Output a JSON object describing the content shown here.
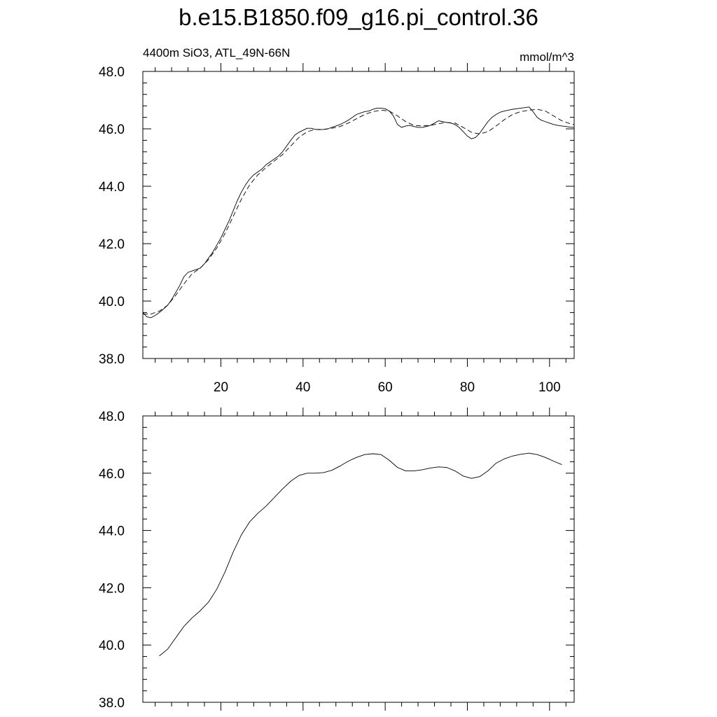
{
  "title": "b.e15.B1850.f09_g16.pi_control.36",
  "chart_data": [
    {
      "type": "line",
      "left_label": "4400m SiO3, ATL_49N-66N",
      "right_label": "mmol/m^3",
      "xlim": [
        1,
        106
      ],
      "ylim": [
        38.0,
        48.0
      ],
      "y_ticks": [
        "38.0",
        "40.0",
        "42.0",
        "44.0",
        "46.0",
        "48.0"
      ],
      "x_ticks": [
        "20",
        "40",
        "60",
        "80",
        "100"
      ],
      "series": [
        {
          "style": "solid",
          "x": [
            1,
            2,
            3,
            4,
            5,
            6,
            7,
            8,
            9,
            10,
            11,
            12,
            13,
            14,
            15,
            16,
            17,
            18,
            19,
            20,
            21,
            22,
            23,
            24,
            25,
            26,
            27,
            28,
            29,
            30,
            31,
            32,
            33,
            34,
            35,
            36,
            37,
            38,
            39,
            40,
            41,
            42,
            43,
            44,
            45,
            46,
            47,
            48,
            49,
            50,
            51,
            52,
            53,
            54,
            55,
            56,
            57,
            58,
            59,
            60,
            61,
            62,
            63,
            64,
            65,
            66,
            67,
            68,
            69,
            70,
            71,
            72,
            73,
            74,
            75,
            76,
            77,
            78,
            79,
            80,
            81,
            82,
            83,
            84,
            85,
            86,
            87,
            88,
            89,
            90,
            91,
            92,
            93,
            94,
            95,
            96,
            97,
            98,
            99,
            100,
            101,
            102,
            103,
            104,
            105,
            106
          ],
          "values": [
            39.6,
            39.45,
            39.42,
            39.5,
            39.6,
            39.72,
            39.85,
            40.05,
            40.3,
            40.55,
            40.85,
            41.0,
            41.05,
            41.1,
            41.15,
            41.3,
            41.5,
            41.7,
            41.95,
            42.2,
            42.5,
            42.8,
            43.15,
            43.5,
            43.8,
            44.05,
            44.25,
            44.4,
            44.5,
            44.6,
            44.75,
            44.85,
            44.95,
            45.05,
            45.2,
            45.4,
            45.6,
            45.78,
            45.88,
            45.95,
            46.02,
            46.02,
            45.98,
            45.97,
            45.98,
            46.0,
            46.05,
            46.1,
            46.15,
            46.22,
            46.3,
            46.4,
            46.5,
            46.55,
            46.6,
            46.62,
            46.68,
            46.72,
            46.72,
            46.7,
            46.62,
            46.45,
            46.15,
            46.05,
            46.1,
            46.12,
            46.08,
            46.05,
            46.05,
            46.08,
            46.12,
            46.2,
            46.28,
            46.25,
            46.22,
            46.2,
            46.15,
            46.05,
            45.9,
            45.75,
            45.65,
            45.7,
            45.85,
            46.05,
            46.25,
            46.4,
            46.5,
            46.58,
            46.62,
            46.65,
            46.68,
            46.7,
            46.72,
            46.74,
            46.76,
            46.6,
            46.4,
            46.3,
            46.25,
            46.2,
            46.15,
            46.12,
            46.1,
            46.08,
            46.06,
            46.05
          ]
        },
        {
          "style": "dashed",
          "x": [
            1,
            3,
            5,
            7,
            9,
            11,
            13,
            15,
            17,
            19,
            21,
            23,
            25,
            27,
            29,
            31,
            33,
            35,
            37,
            39,
            41,
            43,
            45,
            47,
            49,
            51,
            53,
            55,
            57,
            59,
            61,
            63,
            65,
            67,
            69,
            71,
            73,
            75,
            77,
            79,
            81,
            83,
            85,
            87,
            89,
            91,
            93,
            95,
            97,
            99,
            101,
            103,
            105,
            106
          ],
          "values": [
            39.55,
            39.55,
            39.65,
            39.85,
            40.2,
            40.6,
            40.95,
            41.15,
            41.45,
            41.85,
            42.35,
            42.95,
            43.55,
            44.05,
            44.4,
            44.65,
            44.88,
            45.1,
            45.4,
            45.7,
            45.9,
            45.98,
            45.98,
            46.02,
            46.08,
            46.2,
            46.35,
            46.5,
            46.6,
            46.65,
            46.62,
            46.45,
            46.25,
            46.12,
            46.1,
            46.12,
            46.18,
            46.22,
            46.2,
            46.05,
            45.88,
            45.82,
            45.9,
            46.1,
            46.32,
            46.5,
            46.6,
            46.65,
            46.68,
            46.62,
            46.45,
            46.28,
            46.18,
            46.15
          ]
        }
      ]
    },
    {
      "type": "line",
      "xlim": [
        1,
        106
      ],
      "ylim": [
        38.0,
        48.0
      ],
      "y_ticks": [
        "38.0",
        "40.0",
        "42.0",
        "44.0",
        "46.0",
        "48.0"
      ],
      "series": [
        {
          "style": "solid",
          "x": [
            5,
            7,
            9,
            11,
            13,
            15,
            17,
            19,
            21,
            23,
            25,
            27,
            29,
            31,
            33,
            35,
            37,
            39,
            41,
            43,
            45,
            47,
            49,
            51,
            53,
            55,
            57,
            59,
            61,
            63,
            65,
            67,
            69,
            71,
            73,
            75,
            77,
            79,
            81,
            83,
            85,
            87,
            89,
            91,
            93,
            95,
            97,
            99,
            101,
            103
          ],
          "values": [
            39.62,
            39.85,
            40.25,
            40.65,
            40.95,
            41.2,
            41.5,
            41.95,
            42.55,
            43.25,
            43.85,
            44.3,
            44.6,
            44.85,
            45.15,
            45.45,
            45.72,
            45.92,
            46.0,
            46.0,
            46.02,
            46.1,
            46.25,
            46.42,
            46.55,
            46.65,
            46.68,
            46.65,
            46.45,
            46.2,
            46.08,
            46.08,
            46.12,
            46.18,
            46.22,
            46.2,
            46.08,
            45.9,
            45.82,
            45.88,
            46.08,
            46.35,
            46.5,
            46.6,
            46.66,
            46.7,
            46.65,
            46.55,
            46.42,
            46.3
          ]
        }
      ]
    }
  ]
}
